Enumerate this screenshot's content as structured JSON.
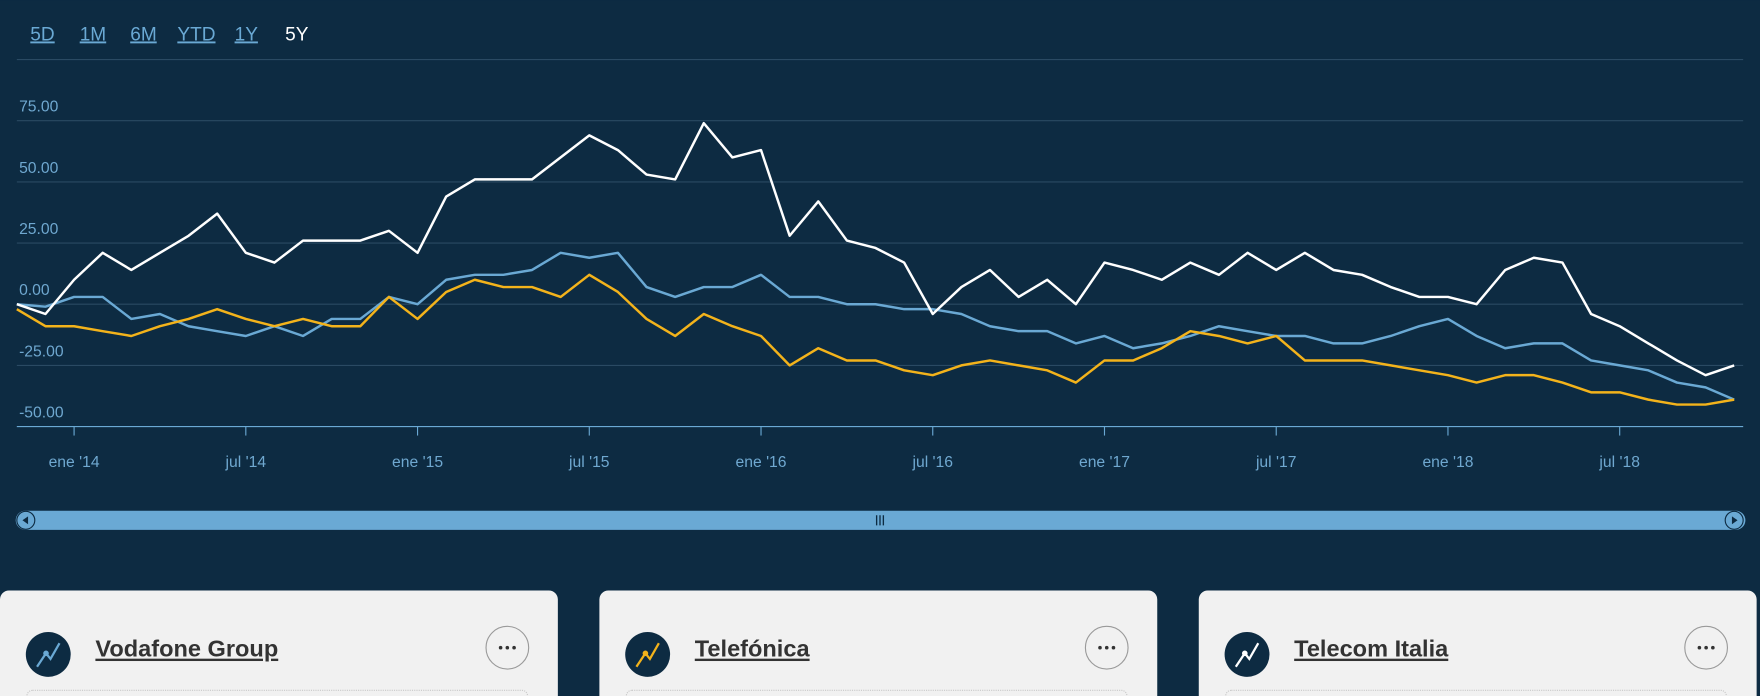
{
  "range_selector": {
    "options": [
      "5D",
      "1M",
      "6M",
      "YTD",
      "1Y",
      "5Y"
    ],
    "selected": 5
  },
  "chart_data": {
    "type": "line",
    "categories": [
      null,
      null,
      "ene '14",
      null,
      null,
      null,
      null,
      null,
      "jul '14",
      null,
      null,
      null,
      null,
      null,
      "ene '15",
      null,
      null,
      null,
      null,
      null,
      "jul '15",
      null,
      null,
      null,
      null,
      null,
      "ene '16",
      null,
      null,
      null,
      null,
      null,
      "jul '16",
      null,
      null,
      null,
      null,
      null,
      "ene '17",
      null,
      null,
      null,
      null,
      null,
      "jul '17",
      null,
      null,
      null,
      null,
      null,
      "ene '18",
      null,
      null,
      null,
      null,
      null,
      "jul '18",
      null,
      null,
      null,
      null
    ],
    "ylim": [
      -50,
      100
    ],
    "yticks": [
      {
        "value": -50,
        "label": "-50.00"
      },
      {
        "value": -25,
        "label": "-25.00"
      },
      {
        "value": 0,
        "label": "0.00"
      },
      {
        "value": 25,
        "label": "25.00"
      },
      {
        "value": 50,
        "label": "50.00"
      },
      {
        "value": 75,
        "label": "75.00"
      }
    ],
    "grid": true,
    "series": [
      {
        "name": "Vodafone Group",
        "color": "#6aa9d4",
        "values": [
          0,
          -1,
          3,
          3,
          -6,
          -4,
          -9,
          -11,
          -13,
          -9,
          -13,
          -6,
          -6,
          3,
          0,
          10,
          12,
          12,
          14,
          21,
          19,
          21,
          7,
          3,
          7,
          7,
          12,
          3,
          3,
          0,
          0,
          -2,
          -2,
          -4,
          -9,
          -11,
          -11,
          -16,
          -13,
          -18,
          -16,
          -13,
          -9,
          -11,
          -13,
          -13,
          -16,
          -16,
          -13,
          -9,
          -6,
          -13,
          -18,
          -16,
          -16,
          -23,
          -25,
          -27,
          -32,
          -34,
          -39
        ]
      },
      {
        "name": "Telefónica",
        "color": "#f3b31b",
        "values": [
          -2,
          -9,
          -9,
          -11,
          -13,
          -9,
          -6,
          -2,
          -6,
          -9,
          -6,
          -9,
          -9,
          3,
          -6,
          5,
          10,
          7,
          7,
          3,
          12,
          5,
          -6,
          -13,
          -4,
          -9,
          -13,
          -25,
          -18,
          -23,
          -23,
          -27,
          -29,
          -25,
          -23,
          -25,
          -27,
          -32,
          -23,
          -23,
          -18,
          -11,
          -13,
          -16,
          -13,
          -23,
          -23,
          -23,
          -25,
          -27,
          -29,
          -32,
          -29,
          -29,
          -32,
          -36,
          -36,
          -39,
          -41,
          -41,
          -39
        ]
      },
      {
        "name": "Telecom Italia",
        "color": "#ffffff",
        "values": [
          0,
          -4,
          10,
          21,
          14,
          21,
          28,
          37,
          21,
          17,
          26,
          26,
          26,
          30,
          21,
          44,
          51,
          51,
          51,
          60,
          69,
          63,
          53,
          51,
          74,
          60,
          63,
          28,
          42,
          26,
          23,
          17,
          -4,
          7,
          14,
          3,
          10,
          0,
          17,
          14,
          10,
          17,
          12,
          21,
          14,
          21,
          14,
          12,
          7,
          3,
          3,
          0,
          14,
          19,
          17,
          -4,
          -9,
          -16,
          -23,
          -29,
          -25
        ]
      }
    ]
  }
}
